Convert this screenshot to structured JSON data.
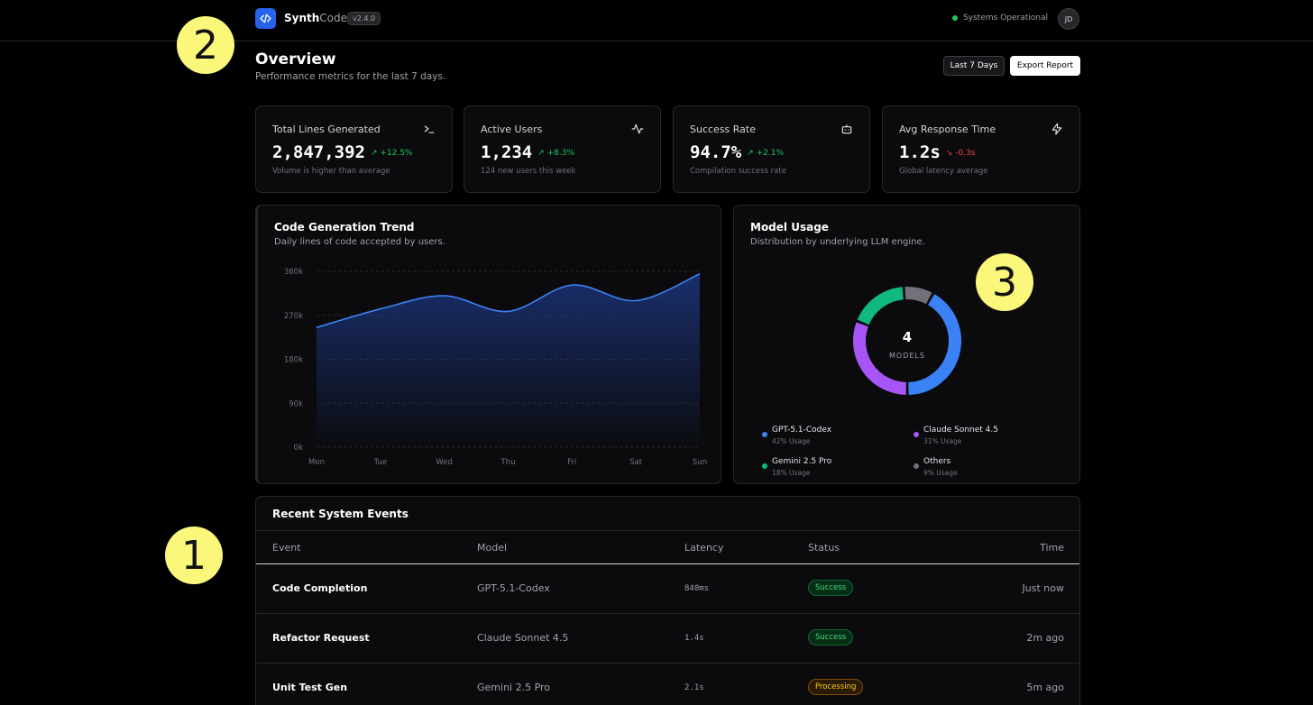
{
  "app": {
    "brand_primary": "Synth",
    "brand_secondary": "Code",
    "version": "v2.4.0",
    "status_text": "Systems Operational",
    "user_initials": "JD"
  },
  "header": {
    "title": "Overview",
    "subtitle": "Performance metrics for the last 7 days.",
    "range_button": "Last 7 Days",
    "export_button": "Export Report"
  },
  "stats": [
    {
      "label": "Total Lines Generated",
      "value": "2,847,392",
      "change": "↗ +12.5%",
      "trend": "up",
      "sub": "Volume is higher than average",
      "icon": "terminal-icon"
    },
    {
      "label": "Active Users",
      "value": "1,234",
      "change": "↗ +8.3%",
      "trend": "up",
      "sub": "124 new users this week",
      "icon": "activity-icon"
    },
    {
      "label": "Success Rate",
      "value": "94.7%",
      "change": "↗ +2.1%",
      "trend": "up",
      "sub": "Compilation success rate",
      "icon": "bot-icon"
    },
    {
      "label": "Avg Response Time",
      "value": "1.2s",
      "change": "↘ -0.3s",
      "trend": "down",
      "sub": "Global latency average",
      "icon": "zap-icon"
    }
  ],
  "trend_card": {
    "title": "Code Generation Trend",
    "subtitle": "Daily lines of code accepted by users."
  },
  "model_card": {
    "title": "Model Usage",
    "subtitle": "Distribution by underlying LLM engine.",
    "center_value": "4",
    "center_label": "MODELS",
    "legend": [
      {
        "name": "GPT-5.1-Codex",
        "usage": "42% Usage",
        "color": "#3b82f6"
      },
      {
        "name": "Claude Sonnet 4.5",
        "usage": "31% Usage",
        "color": "#a855f7"
      },
      {
        "name": "Gemini 2.5 Pro",
        "usage": "18% Usage",
        "color": "#10b981"
      },
      {
        "name": "Others",
        "usage": "9% Usage",
        "color": "#71717a"
      }
    ]
  },
  "chart_data": [
    {
      "type": "area",
      "title": "Code Generation Trend",
      "categories": [
        "Mon",
        "Tue",
        "Wed",
        "Thu",
        "Fri",
        "Sat",
        "Sun"
      ],
      "values": [
        245000,
        283000,
        310000,
        278000,
        332000,
        300000,
        355000
      ],
      "ylim": [
        0,
        360000
      ],
      "yticks": [
        0,
        90000,
        180000,
        270000,
        360000
      ],
      "ytick_labels": [
        "0k",
        "90k",
        "180k",
        "270k",
        "360k"
      ],
      "color": "#3b82f6"
    },
    {
      "type": "pie",
      "title": "Model Usage",
      "categories": [
        "GPT-5.1-Codex",
        "Claude Sonnet 4.5",
        "Gemini 2.5 Pro",
        "Others"
      ],
      "values": [
        42,
        31,
        18,
        9
      ],
      "colors": [
        "#3b82f6",
        "#a855f7",
        "#10b981",
        "#71717a"
      ]
    }
  ],
  "events": {
    "title": "Recent System Events",
    "columns": [
      "Event",
      "Model",
      "Latency",
      "Status",
      "Time"
    ],
    "rows": [
      {
        "event": "Code Completion",
        "model": "GPT-5.1-Codex",
        "latency": "840ms",
        "status": "Success",
        "status_type": "success",
        "time": "Just now"
      },
      {
        "event": "Refactor Request",
        "model": "Claude Sonnet 4.5",
        "latency": "1.4s",
        "status": "Success",
        "status_type": "success",
        "time": "2m ago"
      },
      {
        "event": "Unit Test Gen",
        "model": "Gemini 2.5 Pro",
        "latency": "2.1s",
        "status": "Processing",
        "status_type": "processing",
        "time": "5m ago"
      }
    ]
  },
  "markers": [
    "1",
    "2",
    "3"
  ]
}
